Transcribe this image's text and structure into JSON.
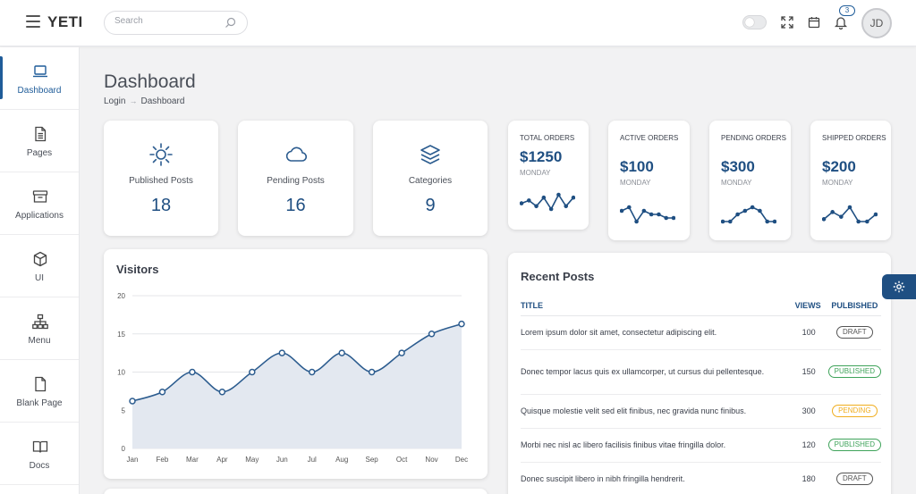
{
  "app": {
    "brand": "YETI"
  },
  "header": {
    "search_placeholder": "Search",
    "notifications_count": "3",
    "avatar_initials": "JD"
  },
  "sidebar": {
    "items": [
      {
        "label": "Dashboard",
        "icon": "laptop-icon",
        "active": true
      },
      {
        "label": "Pages",
        "icon": "document-icon"
      },
      {
        "label": "Applications",
        "icon": "archive-icon"
      },
      {
        "label": "UI",
        "icon": "cube-icon"
      },
      {
        "label": "Menu",
        "icon": "sitemap-icon"
      },
      {
        "label": "Blank Page",
        "icon": "blank-file-icon"
      },
      {
        "label": "Docs",
        "icon": "book-icon"
      }
    ]
  },
  "page": {
    "title": "Dashboard",
    "breadcrumb": [
      "Login",
      "Dashboard"
    ]
  },
  "stats": [
    {
      "label": "Published Posts",
      "value": "18",
      "icon": "sun-icon"
    },
    {
      "label": "Pending Posts",
      "value": "16",
      "icon": "cloud-icon"
    },
    {
      "label": "Categories",
      "value": "9",
      "icon": "layers-icon"
    }
  ],
  "orders": [
    {
      "title": "Total Orders",
      "value": "$1250",
      "day": "MONDAY",
      "spark": [
        5,
        6,
        4,
        7,
        3,
        8,
        4,
        7
      ]
    },
    {
      "title": "Active Orders",
      "value": "$100",
      "day": "MONDAY",
      "spark": [
        6,
        7,
        3,
        6,
        5,
        5,
        4,
        4
      ]
    },
    {
      "title": "Pending Orders",
      "value": "$300",
      "day": "MONDAY",
      "spark": [
        3,
        3,
        5,
        6,
        7,
        6,
        3,
        3
      ]
    },
    {
      "title": "Shipped Orders",
      "value": "$200",
      "day": "MONDAY",
      "spark": [
        4,
        7,
        5,
        9,
        3,
        3,
        6
      ]
    }
  ],
  "visitors": {
    "title": "Visitors",
    "chart_data": {
      "type": "area",
      "x": [
        "Jan",
        "Feb",
        "Mar",
        "Apr",
        "May",
        "Jun",
        "Jul",
        "Aug",
        "Sep",
        "Oct",
        "Nov",
        "Dec"
      ],
      "values": [
        6.2,
        7.4,
        10,
        7.4,
        10,
        12.5,
        10,
        12.5,
        10,
        12.5,
        15,
        16.3
      ],
      "yticks": [
        0,
        5,
        10,
        15,
        20
      ],
      "ylim": [
        0,
        20
      ],
      "grid": true,
      "colors": {
        "line": "#2c5c8f",
        "fill": "#e3e8f0"
      }
    }
  },
  "recent_posts": {
    "title": "Recent Posts",
    "columns": [
      "TITLE",
      "VIEWS",
      "PULBISHED"
    ],
    "rows": [
      {
        "title": "Lorem ipsum dolor sit amet, consectetur adipiscing elit.",
        "views": "100",
        "status": "DRAFT",
        "status_color": "#555555"
      },
      {
        "title": "Donec tempor lacus quis ex ullamcorper, ut cursus dui pellentesque.",
        "views": "150",
        "status": "PUBLISHED",
        "status_color": "#3fa35a"
      },
      {
        "title": "Quisque molestie velit sed elit finibus, nec gravida nunc finibus.",
        "views": "300",
        "status": "PENDING",
        "status_color": "#f0ad1e"
      },
      {
        "title": "Morbi nec nisl ac libero facilisis finibus vitae fringilla dolor.",
        "views": "120",
        "status": "PUBLISHED",
        "status_color": "#3fa35a"
      },
      {
        "title": "Donec suscipit libero in nibh fringilla hendrerit.",
        "views": "180",
        "status": "DRAFT",
        "status_color": "#555555"
      }
    ]
  },
  "colors": {
    "accent": "#1f4f82",
    "background": "#f2f2f3"
  }
}
